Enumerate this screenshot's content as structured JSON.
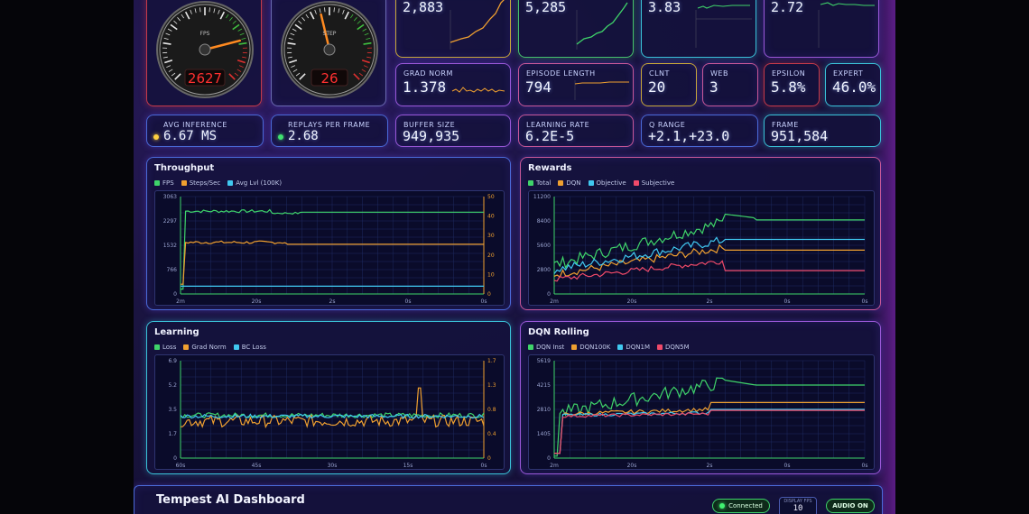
{
  "gauges": [
    {
      "label": "FPS",
      "value": "2627",
      "fraction": 0.78
    },
    {
      "label": "STEP",
      "value": "26",
      "fraction": 0.45
    }
  ],
  "top_cards": [
    {
      "value": "2,883"
    },
    {
      "value": "5,285"
    },
    {
      "value": "3.83"
    },
    {
      "value": "2.72"
    }
  ],
  "row2": {
    "grad_norm": {
      "label": "GRAD NORM",
      "value": "1.378"
    },
    "episode_length": {
      "label": "EPISODE LENGTH",
      "value": "794"
    },
    "clnt": {
      "label": "CLNT",
      "value": "20"
    },
    "web": {
      "label": "WEB",
      "value": "3"
    },
    "epsilon": {
      "label": "EPSILON",
      "value": "5.8%"
    },
    "expert": {
      "label": "EXPERT",
      "value": "46.0%"
    }
  },
  "row3": {
    "avg_inference": {
      "label": "AVG INFERENCE",
      "value": "6.67 MS"
    },
    "replays": {
      "label": "REPLAYS PER FRAME",
      "value": "2.68"
    },
    "buffer": {
      "label": "BUFFER SIZE",
      "value": "949,935"
    },
    "lr": {
      "label": "LEARNING RATE",
      "value": "6.2E-5"
    },
    "qrange": {
      "label": "Q RANGE",
      "value": "+2.1,+23.0"
    },
    "frame": {
      "label": "FRAME",
      "value": "951,584"
    }
  },
  "charts": {
    "throughput": {
      "title": "Throughput",
      "legend": [
        {
          "name": "FPS",
          "color": "#3fd46a"
        },
        {
          "name": "Steps/Sec",
          "color": "#f0a030"
        },
        {
          "name": "Avg Lvl (100K)",
          "color": "#40c8f0"
        }
      ],
      "yleft": [
        "3063",
        "2297",
        "1532",
        "766",
        "0"
      ],
      "yright": [
        "50",
        "40",
        "30",
        "20",
        "10",
        "0"
      ],
      "xticks": [
        "2m",
        "20s",
        "2s",
        "0s",
        "0s"
      ]
    },
    "rewards": {
      "title": "Rewards",
      "legend": [
        {
          "name": "Total",
          "color": "#3fd46a"
        },
        {
          "name": "DQN",
          "color": "#f0a030"
        },
        {
          "name": "Objective",
          "color": "#40c8f0"
        },
        {
          "name": "Subjective",
          "color": "#f04a6a"
        }
      ],
      "yleft": [
        "11200",
        "8400",
        "5600",
        "2800",
        "0"
      ],
      "xticks": [
        "2m",
        "20s",
        "2s",
        "0s",
        "0s"
      ]
    },
    "learning": {
      "title": "Learning",
      "legend": [
        {
          "name": "Loss",
          "color": "#3fd46a"
        },
        {
          "name": "Grad Norm",
          "color": "#f0a030"
        },
        {
          "name": "BC Loss",
          "color": "#40c8f0"
        }
      ],
      "yleft": [
        "6.9",
        "5.2",
        "3.5",
        "1.7",
        "0"
      ],
      "yright": [
        "1.7",
        "1.3",
        "0.8",
        "0.4",
        "0"
      ],
      "xticks": [
        "60s",
        "45s",
        "30s",
        "15s",
        "0s"
      ]
    },
    "dqn_rolling": {
      "title": "DQN Rolling",
      "legend": [
        {
          "name": "DQN Inst",
          "color": "#3fd46a"
        },
        {
          "name": "DQN100K",
          "color": "#f0a030"
        },
        {
          "name": "DQN1M",
          "color": "#40c8f0"
        },
        {
          "name": "DQN5M",
          "color": "#f04a6a"
        }
      ],
      "yleft": [
        "5619",
        "4215",
        "2810",
        "1405",
        "0"
      ],
      "xticks": [
        "2m",
        "20s",
        "2s",
        "0s",
        "0s"
      ]
    }
  },
  "footer": {
    "title": "Tempest AI Dashboard",
    "connected": "Connected",
    "display_fps_label": "DISPLAY FPS",
    "display_fps_value": "10",
    "audio": "AUDIO ON"
  }
}
